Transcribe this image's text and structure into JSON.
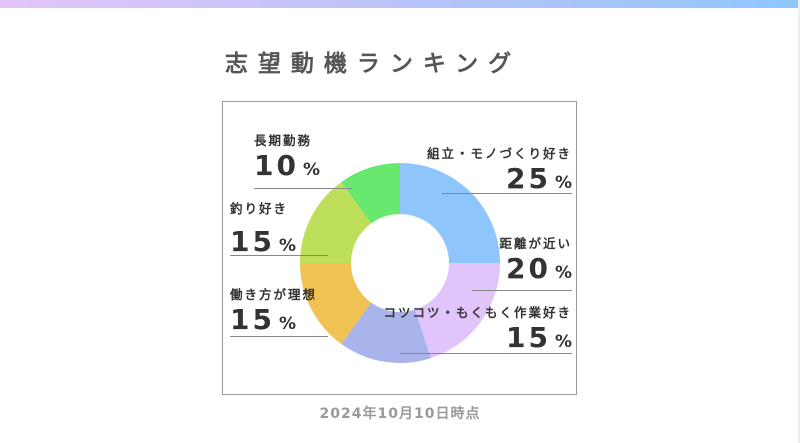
{
  "header": {
    "title": "志望動機ランキング",
    "gradient_colors": [
      "#e2c4fa",
      "#8ec7fb"
    ]
  },
  "footer": {
    "date_label": "2024年10月10日時点"
  },
  "labels": [
    {
      "name": "組立・モノづくり好き",
      "value": "25",
      "unit": "%"
    },
    {
      "name": "距離が近い",
      "value": "20",
      "unit": "%"
    },
    {
      "name": "コツコツ・もくもく作業好き",
      "value": "15",
      "unit": "%"
    },
    {
      "name": "働き方が理想",
      "value": "15",
      "unit": "%"
    },
    {
      "name": "釣り好き",
      "value": "15",
      "unit": "%"
    },
    {
      "name": "長期勤務",
      "value": "10",
      "unit": "%"
    }
  ],
  "chart_data": {
    "type": "pie",
    "subtype": "donut",
    "title": "志望動機ランキング",
    "subtitle": "2024年10月10日時点",
    "categories": [
      "組立・モノづくり好き",
      "距離が近い",
      "コツコツ・もくもく作業好き",
      "働き方が理想",
      "釣り好き",
      "長期勤務"
    ],
    "values": [
      25,
      20,
      15,
      15,
      15,
      10
    ],
    "unit": "%",
    "colors": [
      "#8ec5fb",
      "#e0c4fa",
      "#aab4ec",
      "#f0c254",
      "#bedf59",
      "#69e870"
    ],
    "start_angle_deg": 0,
    "direction": "clockwise",
    "legend": "callout labels with leader lines"
  }
}
